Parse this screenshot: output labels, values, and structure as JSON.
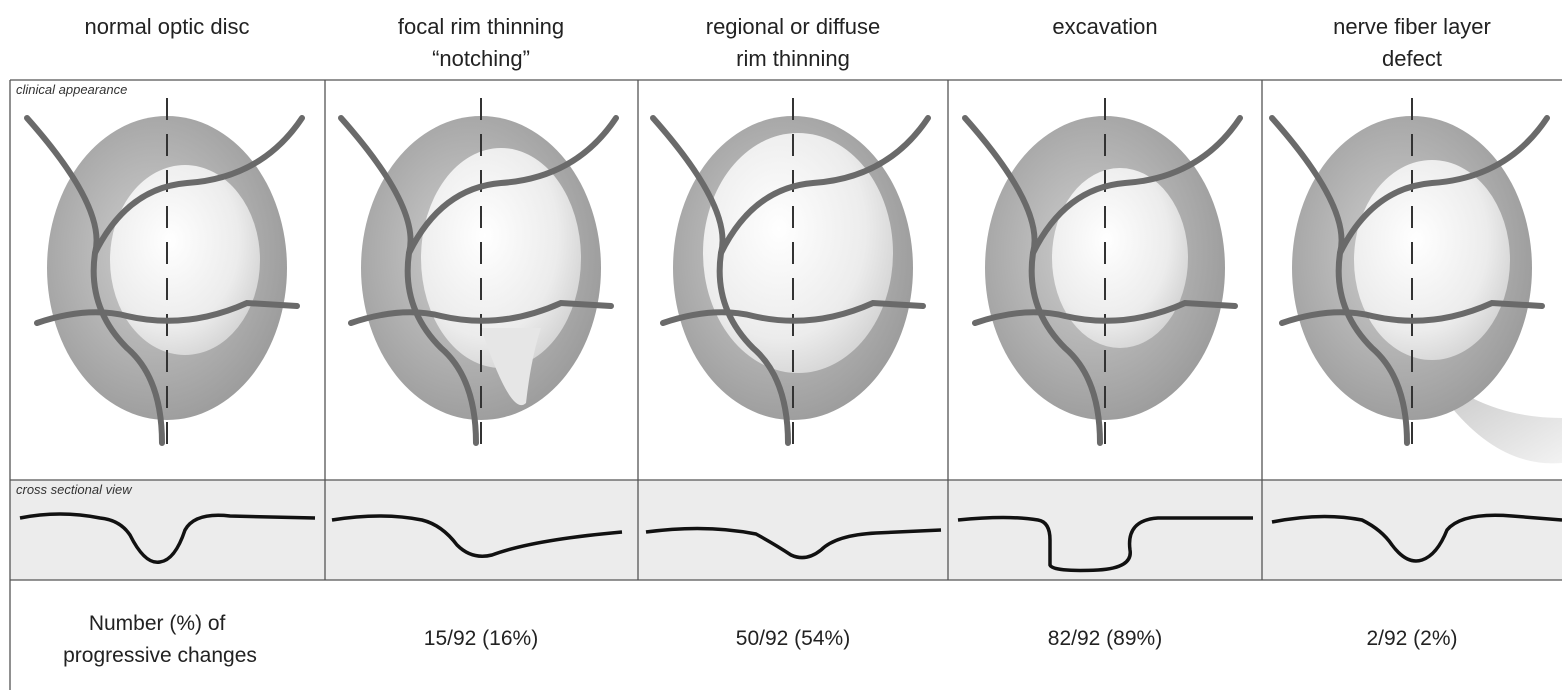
{
  "headers": [
    [
      "normal optic disc"
    ],
    [
      "focal rim thinning",
      "“notching”"
    ],
    [
      "regional or diffuse",
      "rim thinning"
    ],
    [
      "excavation"
    ],
    [
      "nerve fiber layer",
      "defect"
    ]
  ],
  "row_labels": {
    "clinical": "clinical appearance",
    "cross_section": "cross sectional view"
  },
  "summary": {
    "label": [
      "Number (%) of",
      "progressive changes"
    ],
    "values": [
      "15/92 (16%)",
      "50/92 (54%)",
      "82/92 (89%)",
      "2/92 (2%)"
    ]
  }
}
